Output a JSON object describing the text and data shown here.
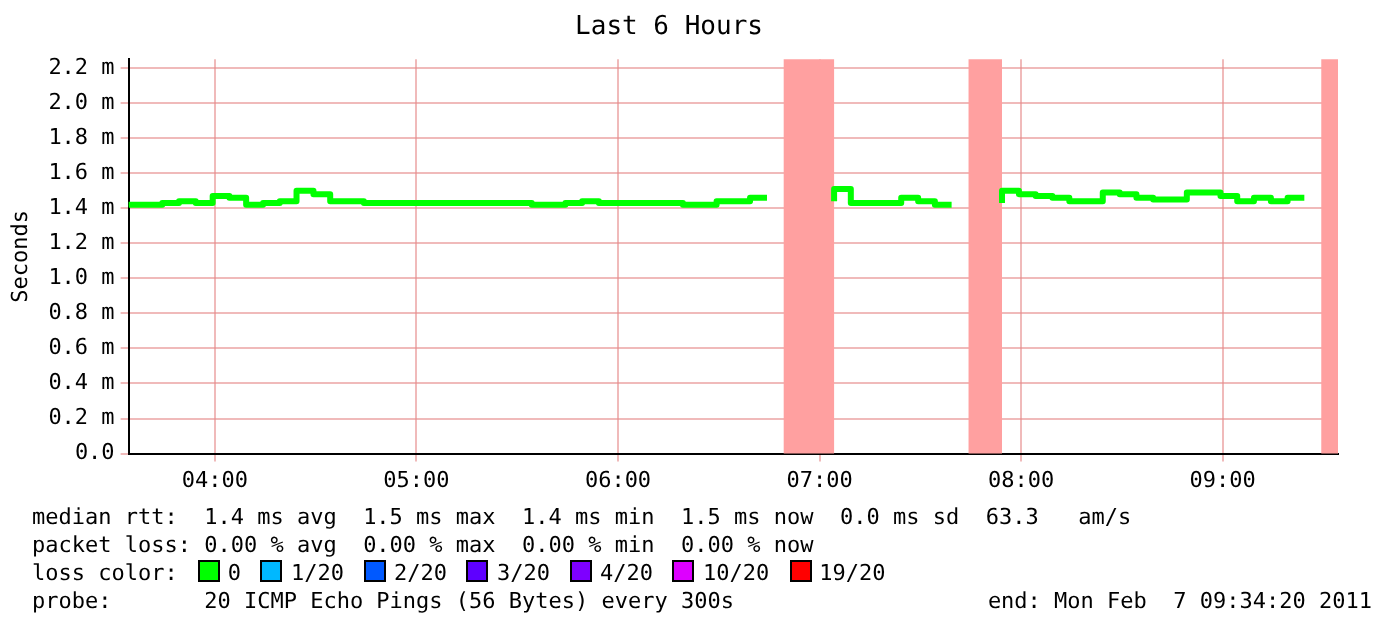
{
  "chart_data": {
    "type": "step",
    "title": "Last 6 Hours",
    "ylabel": "Seconds",
    "xlim": [
      3.572,
      9.572
    ],
    "xticks": [
      {
        "value": 4,
        "label": "04:00"
      },
      {
        "value": 5,
        "label": "05:00"
      },
      {
        "value": 6,
        "label": "06:00"
      },
      {
        "value": 7,
        "label": "07:00"
      },
      {
        "value": 8,
        "label": "08:00"
      },
      {
        "value": 9,
        "label": "09:00"
      }
    ],
    "ylim": [
      0,
      2.25
    ],
    "yticks": [
      {
        "value": 0,
        "label": "0.0"
      },
      {
        "value": 0.2,
        "label": "0.2 m"
      },
      {
        "value": 0.4,
        "label": "0.4 m"
      },
      {
        "value": 0.6,
        "label": "0.6 m"
      },
      {
        "value": 0.8,
        "label": "0.8 m"
      },
      {
        "value": 1.0,
        "label": "1.0 m"
      },
      {
        "value": 1.2,
        "label": "1.2 m"
      },
      {
        "value": 1.4,
        "label": "1.4 m"
      },
      {
        "value": 1.6,
        "label": "1.6 m"
      },
      {
        "value": 1.8,
        "label": "1.8 m"
      },
      {
        "value": 2.0,
        "label": "2.0 m"
      },
      {
        "value": 2.2,
        "label": "2.2 m"
      }
    ],
    "x": [
      3.572,
      3.655,
      3.739,
      3.822,
      3.905,
      3.989,
      4.072,
      4.155,
      4.239,
      4.322,
      4.405,
      4.489,
      4.572,
      4.655,
      4.739,
      4.822,
      4.905,
      4.989,
      5.072,
      5.155,
      5.239,
      5.322,
      5.405,
      5.489,
      5.572,
      5.655,
      5.739,
      5.822,
      5.905,
      5.989,
      6.072,
      6.155,
      6.239,
      6.322,
      6.405,
      6.489,
      6.572,
      6.655,
      6.739,
      6.822,
      6.905,
      6.989,
      7.072,
      7.155,
      7.239,
      7.322,
      7.405,
      7.489,
      7.572,
      7.655,
      7.739,
      7.822,
      7.905,
      7.989,
      8.072,
      8.155,
      8.239,
      8.322,
      8.405,
      8.489,
      8.572,
      8.655,
      8.739,
      8.822,
      8.905,
      8.989,
      9.072,
      9.155,
      9.239,
      9.322,
      9.405
    ],
    "series": [
      {
        "color": "#00ff00",
        "values": [
          1.41,
          1.42,
          1.42,
          1.43,
          1.44,
          1.43,
          1.47,
          1.46,
          1.42,
          1.43,
          1.44,
          1.5,
          1.48,
          1.44,
          1.44,
          1.43,
          1.43,
          1.43,
          1.43,
          1.43,
          1.43,
          1.43,
          1.43,
          1.43,
          1.43,
          1.42,
          1.42,
          1.43,
          1.44,
          1.43,
          1.43,
          1.43,
          1.43,
          1.43,
          1.42,
          1.42,
          1.44,
          1.44,
          1.46,
          null,
          null,
          null,
          1.44,
          1.51,
          1.43,
          1.43,
          1.43,
          1.46,
          1.44,
          1.42,
          null,
          null,
          1.43,
          1.5,
          1.48,
          1.47,
          1.46,
          1.44,
          1.44,
          1.49,
          1.48,
          1.46,
          1.45,
          1.45,
          1.49,
          1.49,
          1.47,
          1.44,
          1.46,
          1.44,
          1.46
        ]
      }
    ],
    "bands": [
      {
        "axis": "x",
        "from": 6.822,
        "to": 7.072,
        "color": "#ffa0a0"
      },
      {
        "axis": "x",
        "from": 7.739,
        "to": 7.905,
        "color": "#ffa0a0"
      },
      {
        "axis": "x",
        "from": 9.489,
        "to": 9.572,
        "color": "#ffa0a0"
      }
    ],
    "grid": true,
    "annotations": [
      "median rtt:  1.4 ms avg  1.5 ms max  1.4 ms min  1.5 ms now  0.0 ms sd  63.3   am/s",
      "packet loss: 0.00 % avg  0.00 % max  0.00 % min  0.00 % now",
      "loss color:",
      "0",
      "1/20",
      "2/20",
      "3/20",
      "4/20",
      "10/20",
      "19/20",
      "probe:       20 ICMP Echo Pings (56 Bytes) every 300s",
      "end: Mon Feb  7 09:34:20 2011"
    ]
  }
}
